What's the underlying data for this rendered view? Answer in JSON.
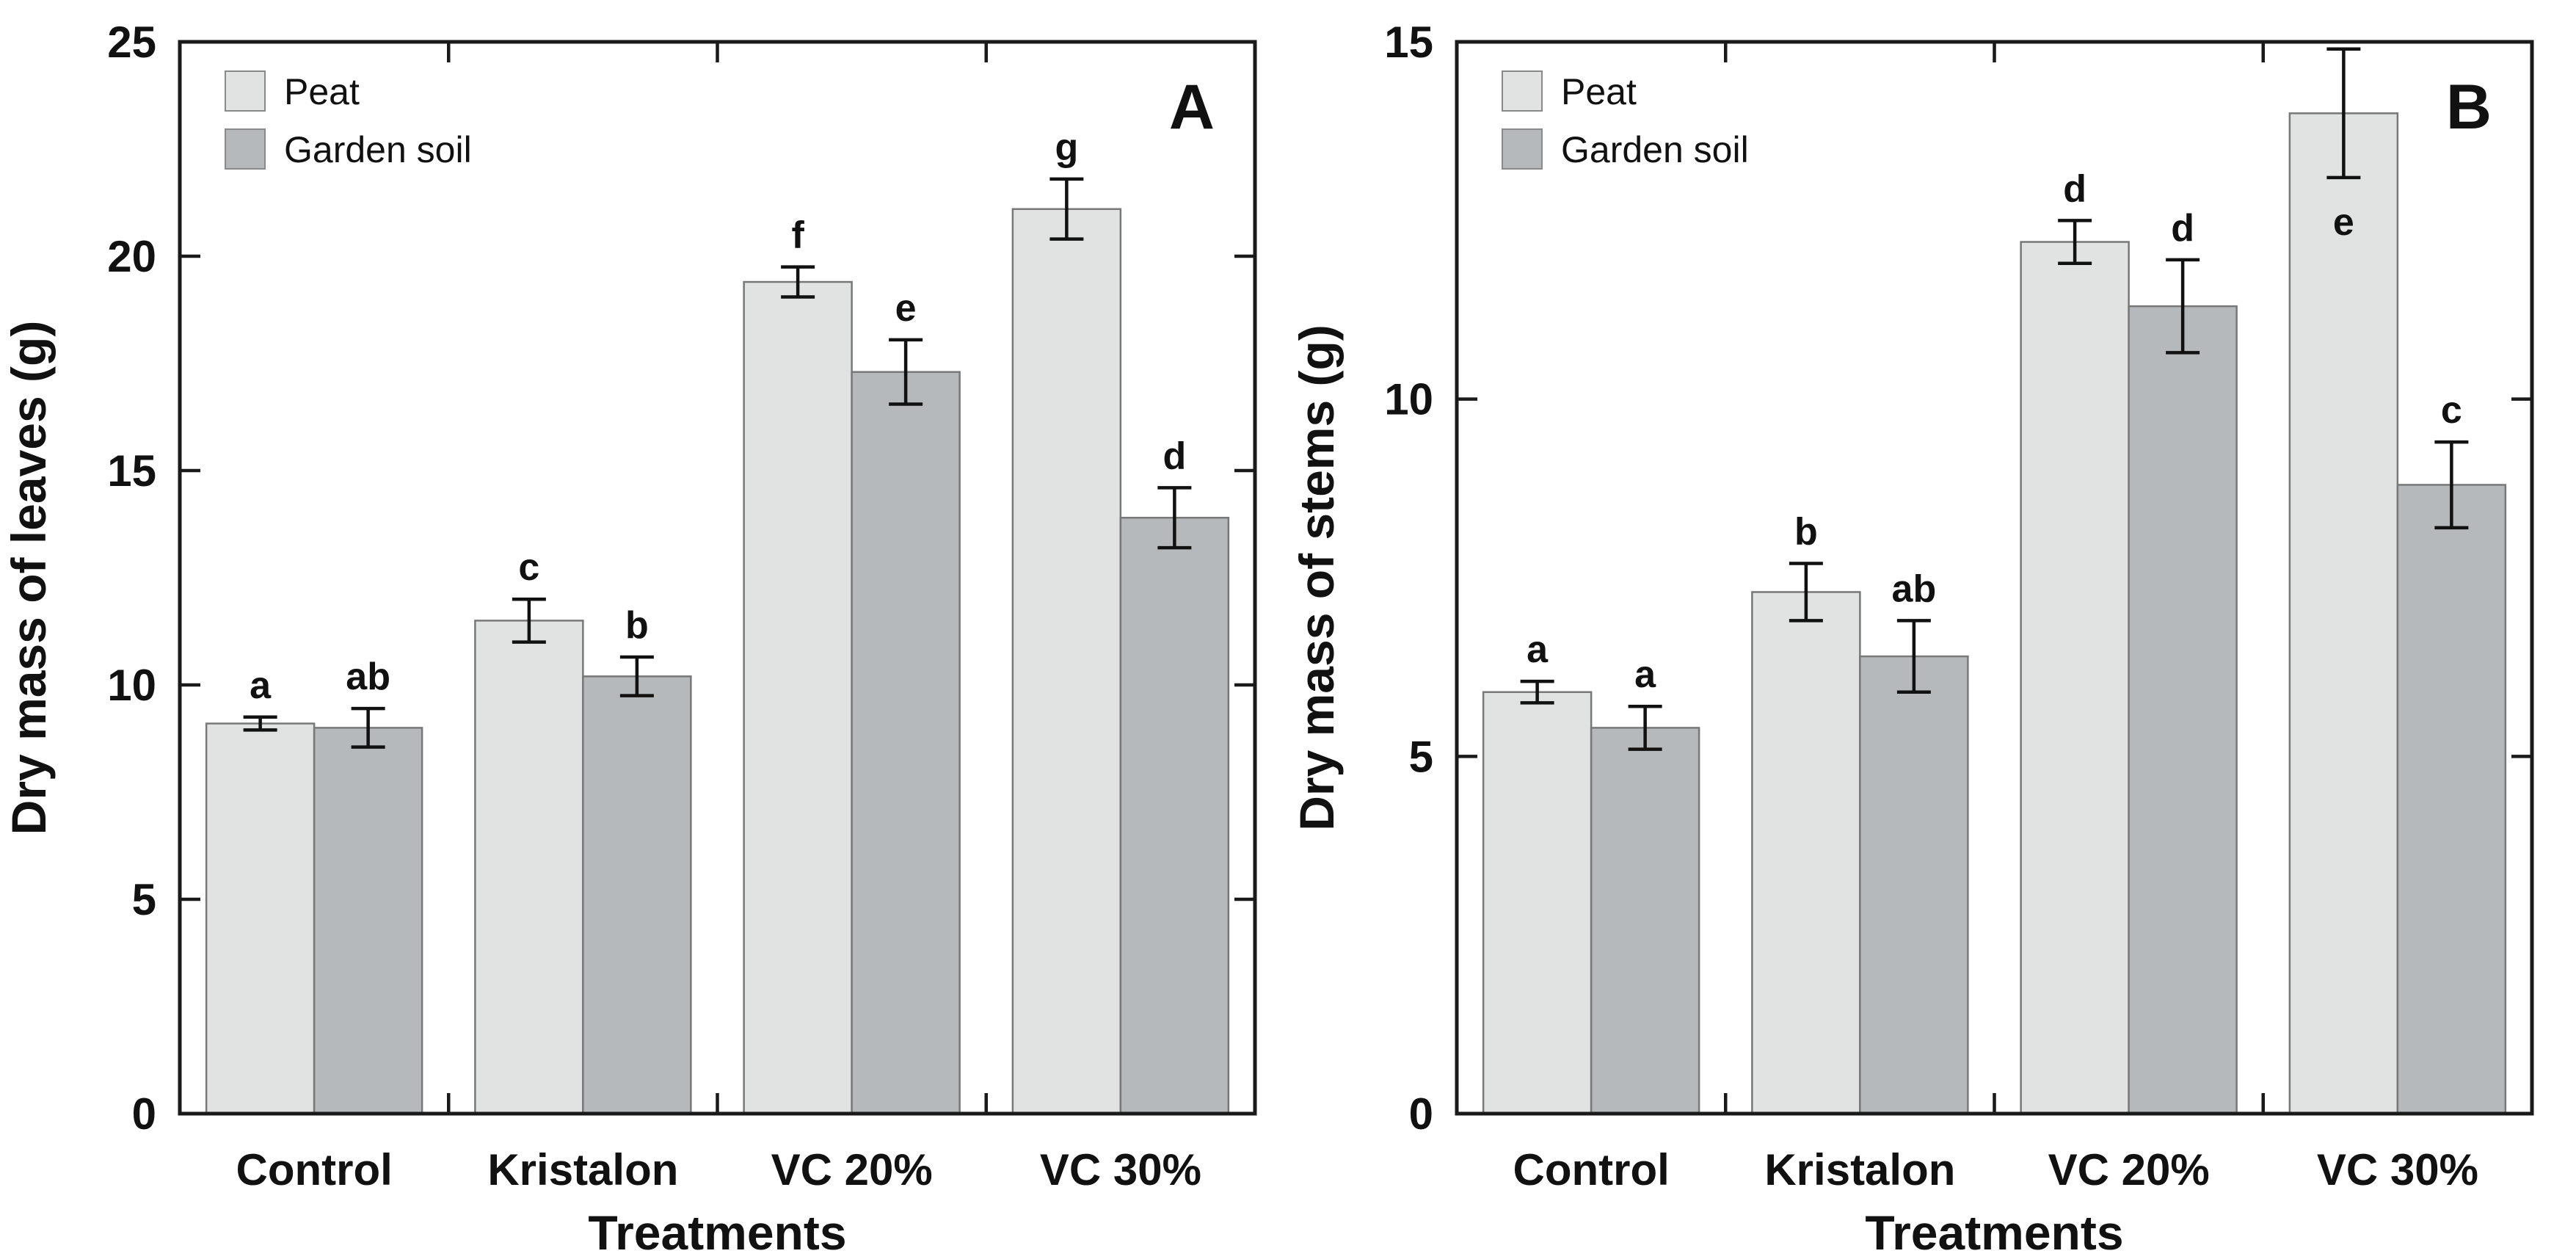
{
  "figure": {
    "background": "#ffffff",
    "axis_color": "#1a1a1a",
    "bar_outline_color": "#787878",
    "error_bar_color": "#111111"
  },
  "legend": {
    "items": [
      {
        "label": "Peat",
        "color": "#e1e3e2"
      },
      {
        "label": "Garden soil",
        "color": "#b6b9bb"
      }
    ],
    "position": "top-left"
  },
  "chart_data": [
    {
      "type": "bar",
      "panel_label": "A",
      "ylabel": "Dry mass of leaves (g)",
      "xlabel": "Treatments",
      "ylim": [
        0,
        25
      ],
      "ytick_step": 5,
      "ytick_labels": [
        "0",
        "5",
        "10",
        "15",
        "20",
        "25"
      ],
      "grid": false,
      "legend_position": "top-left",
      "categories": [
        "Control",
        "Kristalon",
        "VC 20%",
        "VC 30%"
      ],
      "series": [
        {
          "name": "Peat",
          "color": "#e1e3e2",
          "values": [
            9.1,
            11.5,
            19.4,
            21.1
          ],
          "errors": [
            0.15,
            0.5,
            0.35,
            0.7
          ],
          "letters": [
            "a",
            "c",
            "f",
            "g"
          ],
          "letters_inside": [
            false,
            false,
            false,
            false
          ]
        },
        {
          "name": "Garden soil",
          "color": "#b6b9bb",
          "values": [
            9.0,
            10.2,
            17.3,
            13.9
          ],
          "errors": [
            0.45,
            0.45,
            0.75,
            0.7
          ],
          "letters": [
            "ab",
            "b",
            "e",
            "d"
          ],
          "letters_inside": [
            false,
            false,
            false,
            false
          ]
        }
      ]
    },
    {
      "type": "bar",
      "panel_label": "B",
      "ylabel": "Dry mass of stems (g)",
      "xlabel": "Treatments",
      "ylim": [
        0,
        15
      ],
      "ytick_step": 5,
      "ytick_labels": [
        "0",
        "5",
        "10",
        "15"
      ],
      "grid": false,
      "legend_position": "top-left",
      "categories": [
        "Control",
        "Kristalon",
        "VC 20%",
        "VC 30%"
      ],
      "series": [
        {
          "name": "Peat",
          "color": "#e1e3e2",
          "values": [
            5.9,
            7.3,
            12.2,
            14.0
          ],
          "errors": [
            0.15,
            0.4,
            0.3,
            0.9
          ],
          "letters": [
            "a",
            "b",
            "d",
            "e"
          ],
          "letters_inside": [
            false,
            false,
            false,
            true
          ]
        },
        {
          "name": "Garden soil",
          "color": "#b6b9bb",
          "values": [
            5.4,
            6.4,
            11.3,
            8.8
          ],
          "errors": [
            0.3,
            0.5,
            0.65,
            0.6
          ],
          "letters": [
            "a",
            "ab",
            "d",
            "c"
          ],
          "letters_inside": [
            false,
            false,
            false,
            false
          ]
        }
      ]
    }
  ]
}
